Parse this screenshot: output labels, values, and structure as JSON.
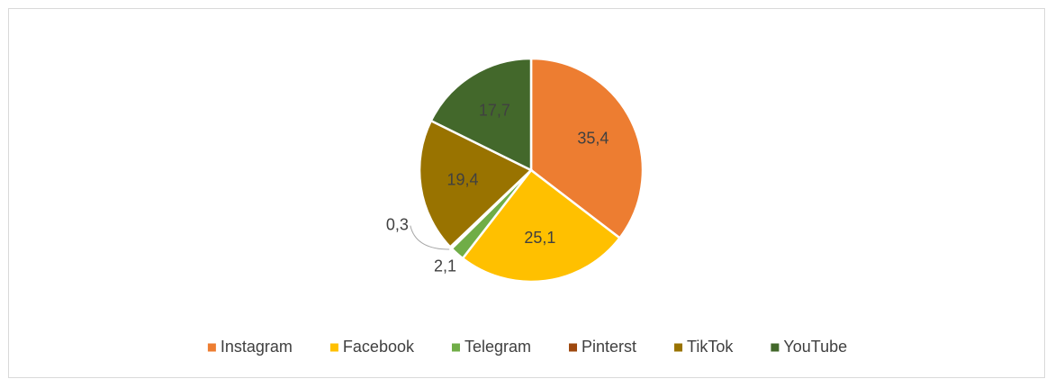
{
  "chart_data": {
    "type": "pie",
    "categories": [
      "Instagram",
      "Facebook",
      "Telegram",
      "Pinterst",
      "TikTok",
      "YouTube"
    ],
    "values": [
      35.4,
      25.1,
      2.1,
      0.3,
      19.4,
      17.7
    ],
    "value_labels": [
      "35,4",
      "25,1",
      "2,1",
      "0,3",
      "19,4",
      "17,7"
    ],
    "colors": [
      "#ED7D31",
      "#FFC000",
      "#70AD47",
      "#9E480E",
      "#997300",
      "#43682B"
    ],
    "legend": "bottom"
  }
}
